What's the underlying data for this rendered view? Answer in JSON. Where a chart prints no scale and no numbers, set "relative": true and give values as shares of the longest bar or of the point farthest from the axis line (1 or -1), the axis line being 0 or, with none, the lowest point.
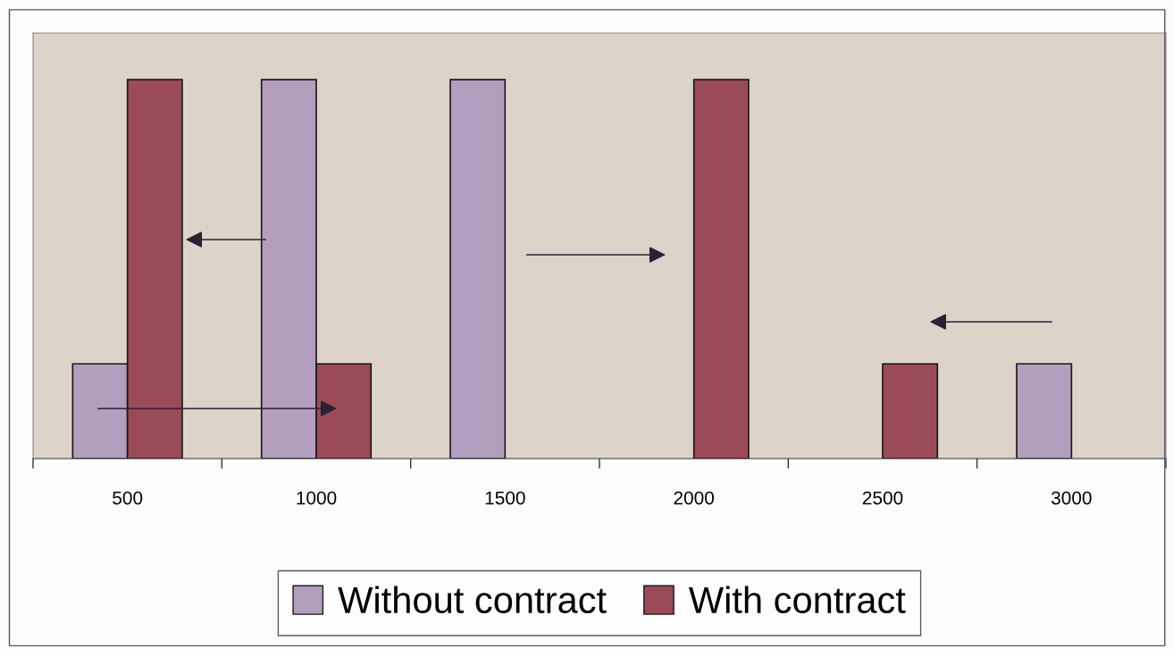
{
  "chart_data": {
    "type": "bar",
    "relative": true,
    "categories": [
      "500",
      "1000",
      "1500",
      "2000",
      "2500",
      "3000"
    ],
    "series": [
      {
        "name": "Without contract",
        "color": "#b49ebf",
        "values": [
          0.25,
          1,
          1,
          0,
          0,
          0.25
        ]
      },
      {
        "name": "With contract",
        "color": "#9b4a58",
        "values": [
          1,
          0.25,
          0,
          1,
          0.25,
          0
        ]
      }
    ],
    "legend": "bottom",
    "grid": false
  }
}
